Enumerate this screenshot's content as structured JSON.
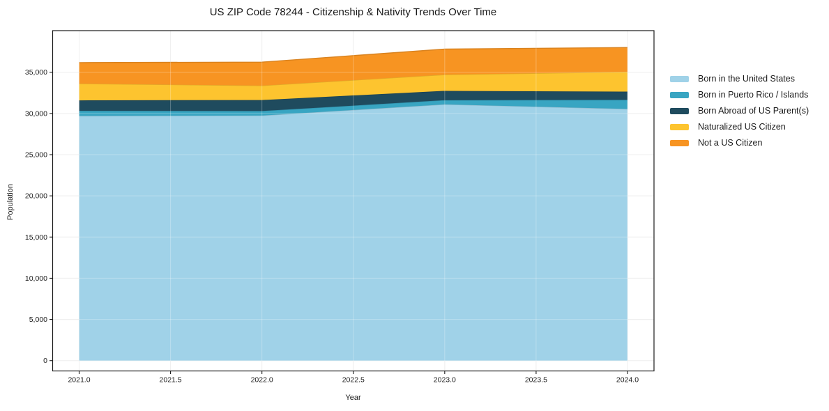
{
  "title": "US ZIP Code 78244 - Citizenship & Nativity Trends Over Time",
  "xlabel": "Year",
  "ylabel": "Population",
  "chart_data": {
    "type": "area",
    "stacked": true,
    "title": "US ZIP Code 78244 - Citizenship & Nativity Trends Over Time",
    "xlabel": "Year",
    "ylabel": "Population",
    "grid": true,
    "legend_position": "right-outside",
    "x": [
      2021,
      2022,
      2023,
      2024
    ],
    "x_tick_values": [
      2021.0,
      2021.5,
      2022.0,
      2022.5,
      2023.0,
      2023.5,
      2024.0
    ],
    "x_tick_labels": [
      "2021.0",
      "2021.5",
      "2022.0",
      "2022.5",
      "2023.0",
      "2023.5",
      "2024.0"
    ],
    "y_tick_values": [
      0,
      5000,
      10000,
      15000,
      20000,
      25000,
      30000,
      35000
    ],
    "y_tick_labels": [
      "0",
      "5,000",
      "10,000",
      "15,000",
      "20,000",
      "25,000",
      "30,000",
      "35,000"
    ],
    "xlim": [
      2020.855,
      2024.145
    ],
    "ylim": [
      -1250,
      40050
    ],
    "series": [
      {
        "name": "Born in the United States",
        "color": "#a0d2e8",
        "values": [
          29700,
          29750,
          31100,
          30550
        ]
      },
      {
        "name": "Born in Puerto Rico / Islands",
        "color": "#38a5c2",
        "values": [
          620,
          550,
          510,
          1100
        ]
      },
      {
        "name": "Born Abroad of US Parent(s)",
        "color": "#1f4b5e",
        "values": [
          1270,
          1330,
          1130,
          1000
        ]
      },
      {
        "name": "Naturalized US Citizen",
        "color": "#fdc42f",
        "values": [
          2030,
          1750,
          1970,
          2400
        ]
      },
      {
        "name": "Not a US Citizen",
        "color": "#f79422",
        "values": [
          2550,
          2850,
          3100,
          2950
        ]
      }
    ],
    "stacked_totals": [
      36170,
      36230,
      37810,
      38000
    ]
  },
  "colors": {
    "axis": "#1a1a1a",
    "grid": "#e9e9e9",
    "background": "#ffffff"
  }
}
